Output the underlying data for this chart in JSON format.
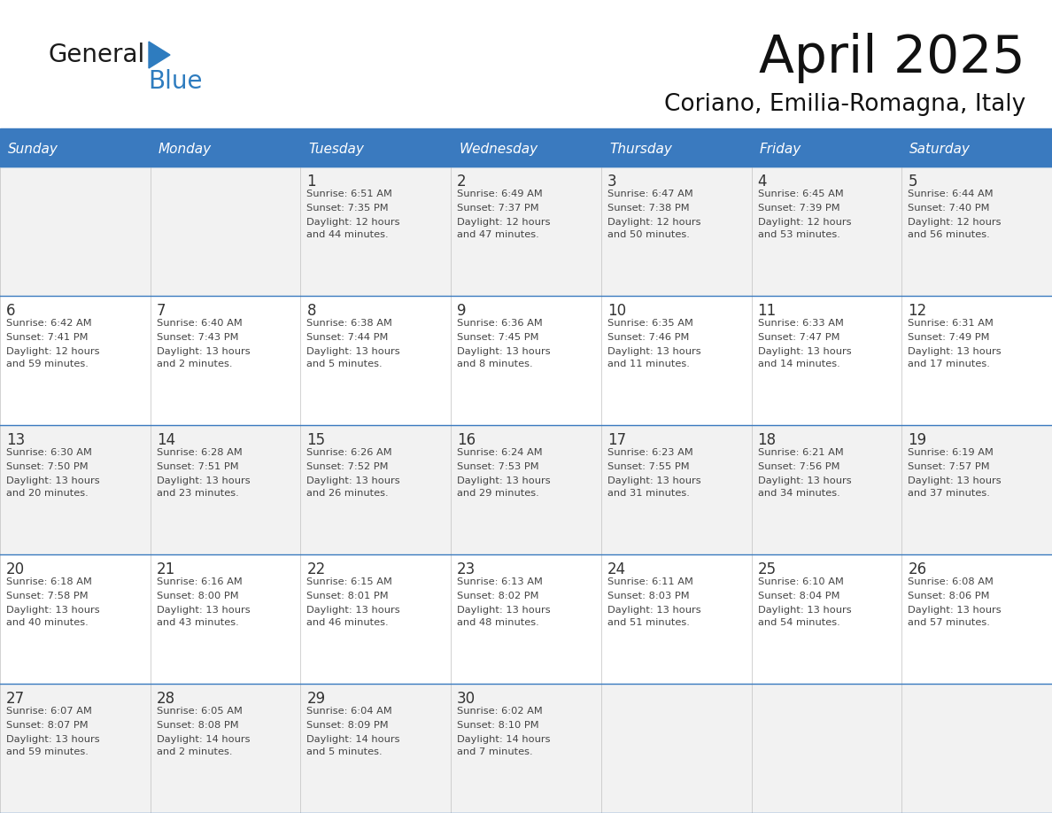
{
  "title": "April 2025",
  "subtitle": "Coriano, Emilia-Romagna, Italy",
  "header_color": "#3a7abf",
  "header_text_color": "#ffffff",
  "cell_bg_light": "#f2f2f2",
  "cell_bg_white": "#ffffff",
  "border_color": "#3a7abf",
  "day_names": [
    "Sunday",
    "Monday",
    "Tuesday",
    "Wednesday",
    "Thursday",
    "Friday",
    "Saturday"
  ],
  "text_color": "#444444",
  "number_color": "#333333",
  "logo_general_color": "#1a1a1a",
  "logo_blue_color": "#2e7cbf",
  "logo_triangle_color": "#2e7cbf",
  "weeks": [
    [
      {
        "date": "",
        "sunrise": "",
        "sunset": "",
        "daylight": ""
      },
      {
        "date": "",
        "sunrise": "",
        "sunset": "",
        "daylight": ""
      },
      {
        "date": "1",
        "sunrise": "Sunrise: 6:51 AM",
        "sunset": "Sunset: 7:35 PM",
        "daylight": "Daylight: 12 hours\nand 44 minutes."
      },
      {
        "date": "2",
        "sunrise": "Sunrise: 6:49 AM",
        "sunset": "Sunset: 7:37 PM",
        "daylight": "Daylight: 12 hours\nand 47 minutes."
      },
      {
        "date": "3",
        "sunrise": "Sunrise: 6:47 AM",
        "sunset": "Sunset: 7:38 PM",
        "daylight": "Daylight: 12 hours\nand 50 minutes."
      },
      {
        "date": "4",
        "sunrise": "Sunrise: 6:45 AM",
        "sunset": "Sunset: 7:39 PM",
        "daylight": "Daylight: 12 hours\nand 53 minutes."
      },
      {
        "date": "5",
        "sunrise": "Sunrise: 6:44 AM",
        "sunset": "Sunset: 7:40 PM",
        "daylight": "Daylight: 12 hours\nand 56 minutes."
      }
    ],
    [
      {
        "date": "6",
        "sunrise": "Sunrise: 6:42 AM",
        "sunset": "Sunset: 7:41 PM",
        "daylight": "Daylight: 12 hours\nand 59 minutes."
      },
      {
        "date": "7",
        "sunrise": "Sunrise: 6:40 AM",
        "sunset": "Sunset: 7:43 PM",
        "daylight": "Daylight: 13 hours\nand 2 minutes."
      },
      {
        "date": "8",
        "sunrise": "Sunrise: 6:38 AM",
        "sunset": "Sunset: 7:44 PM",
        "daylight": "Daylight: 13 hours\nand 5 minutes."
      },
      {
        "date": "9",
        "sunrise": "Sunrise: 6:36 AM",
        "sunset": "Sunset: 7:45 PM",
        "daylight": "Daylight: 13 hours\nand 8 minutes."
      },
      {
        "date": "10",
        "sunrise": "Sunrise: 6:35 AM",
        "sunset": "Sunset: 7:46 PM",
        "daylight": "Daylight: 13 hours\nand 11 minutes."
      },
      {
        "date": "11",
        "sunrise": "Sunrise: 6:33 AM",
        "sunset": "Sunset: 7:47 PM",
        "daylight": "Daylight: 13 hours\nand 14 minutes."
      },
      {
        "date": "12",
        "sunrise": "Sunrise: 6:31 AM",
        "sunset": "Sunset: 7:49 PM",
        "daylight": "Daylight: 13 hours\nand 17 minutes."
      }
    ],
    [
      {
        "date": "13",
        "sunrise": "Sunrise: 6:30 AM",
        "sunset": "Sunset: 7:50 PM",
        "daylight": "Daylight: 13 hours\nand 20 minutes."
      },
      {
        "date": "14",
        "sunrise": "Sunrise: 6:28 AM",
        "sunset": "Sunset: 7:51 PM",
        "daylight": "Daylight: 13 hours\nand 23 minutes."
      },
      {
        "date": "15",
        "sunrise": "Sunrise: 6:26 AM",
        "sunset": "Sunset: 7:52 PM",
        "daylight": "Daylight: 13 hours\nand 26 minutes."
      },
      {
        "date": "16",
        "sunrise": "Sunrise: 6:24 AM",
        "sunset": "Sunset: 7:53 PM",
        "daylight": "Daylight: 13 hours\nand 29 minutes."
      },
      {
        "date": "17",
        "sunrise": "Sunrise: 6:23 AM",
        "sunset": "Sunset: 7:55 PM",
        "daylight": "Daylight: 13 hours\nand 31 minutes."
      },
      {
        "date": "18",
        "sunrise": "Sunrise: 6:21 AM",
        "sunset": "Sunset: 7:56 PM",
        "daylight": "Daylight: 13 hours\nand 34 minutes."
      },
      {
        "date": "19",
        "sunrise": "Sunrise: 6:19 AM",
        "sunset": "Sunset: 7:57 PM",
        "daylight": "Daylight: 13 hours\nand 37 minutes."
      }
    ],
    [
      {
        "date": "20",
        "sunrise": "Sunrise: 6:18 AM",
        "sunset": "Sunset: 7:58 PM",
        "daylight": "Daylight: 13 hours\nand 40 minutes."
      },
      {
        "date": "21",
        "sunrise": "Sunrise: 6:16 AM",
        "sunset": "Sunset: 8:00 PM",
        "daylight": "Daylight: 13 hours\nand 43 minutes."
      },
      {
        "date": "22",
        "sunrise": "Sunrise: 6:15 AM",
        "sunset": "Sunset: 8:01 PM",
        "daylight": "Daylight: 13 hours\nand 46 minutes."
      },
      {
        "date": "23",
        "sunrise": "Sunrise: 6:13 AM",
        "sunset": "Sunset: 8:02 PM",
        "daylight": "Daylight: 13 hours\nand 48 minutes."
      },
      {
        "date": "24",
        "sunrise": "Sunrise: 6:11 AM",
        "sunset": "Sunset: 8:03 PM",
        "daylight": "Daylight: 13 hours\nand 51 minutes."
      },
      {
        "date": "25",
        "sunrise": "Sunrise: 6:10 AM",
        "sunset": "Sunset: 8:04 PM",
        "daylight": "Daylight: 13 hours\nand 54 minutes."
      },
      {
        "date": "26",
        "sunrise": "Sunrise: 6:08 AM",
        "sunset": "Sunset: 8:06 PM",
        "daylight": "Daylight: 13 hours\nand 57 minutes."
      }
    ],
    [
      {
        "date": "27",
        "sunrise": "Sunrise: 6:07 AM",
        "sunset": "Sunset: 8:07 PM",
        "daylight": "Daylight: 13 hours\nand 59 minutes."
      },
      {
        "date": "28",
        "sunrise": "Sunrise: 6:05 AM",
        "sunset": "Sunset: 8:08 PM",
        "daylight": "Daylight: 14 hours\nand 2 minutes."
      },
      {
        "date": "29",
        "sunrise": "Sunrise: 6:04 AM",
        "sunset": "Sunset: 8:09 PM",
        "daylight": "Daylight: 14 hours\nand 5 minutes."
      },
      {
        "date": "30",
        "sunrise": "Sunrise: 6:02 AM",
        "sunset": "Sunset: 8:10 PM",
        "daylight": "Daylight: 14 hours\nand 7 minutes."
      },
      {
        "date": "",
        "sunrise": "",
        "sunset": "",
        "daylight": ""
      },
      {
        "date": "",
        "sunrise": "",
        "sunset": "",
        "daylight": ""
      },
      {
        "date": "",
        "sunrise": "",
        "sunset": "",
        "daylight": ""
      }
    ]
  ]
}
